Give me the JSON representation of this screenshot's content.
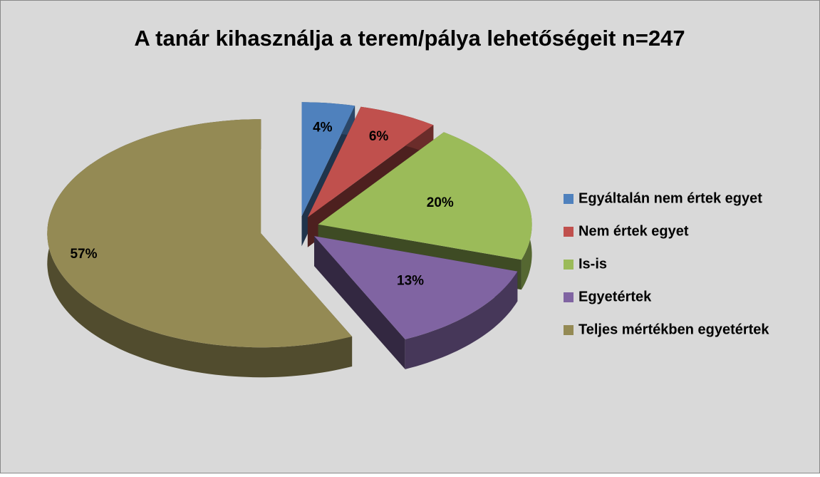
{
  "chart_data": {
    "type": "pie",
    "title": "A tanár kihasználja a terem/pálya lehetőségeit n=247",
    "categories": [
      "Egyáltalán nem értek egyet",
      "Nem értek egyet",
      "Is-is",
      "Egyetértek",
      "Teljes mértékben egyetértek"
    ],
    "values": [
      4,
      6,
      20,
      13,
      57
    ],
    "value_labels": [
      "4%",
      "6%",
      "20%",
      "13%",
      "57%"
    ],
    "colors": [
      "#4f81bd",
      "#c0504d",
      "#9bbb59",
      "#8064a2",
      "#948a54"
    ],
    "legend": "right"
  }
}
